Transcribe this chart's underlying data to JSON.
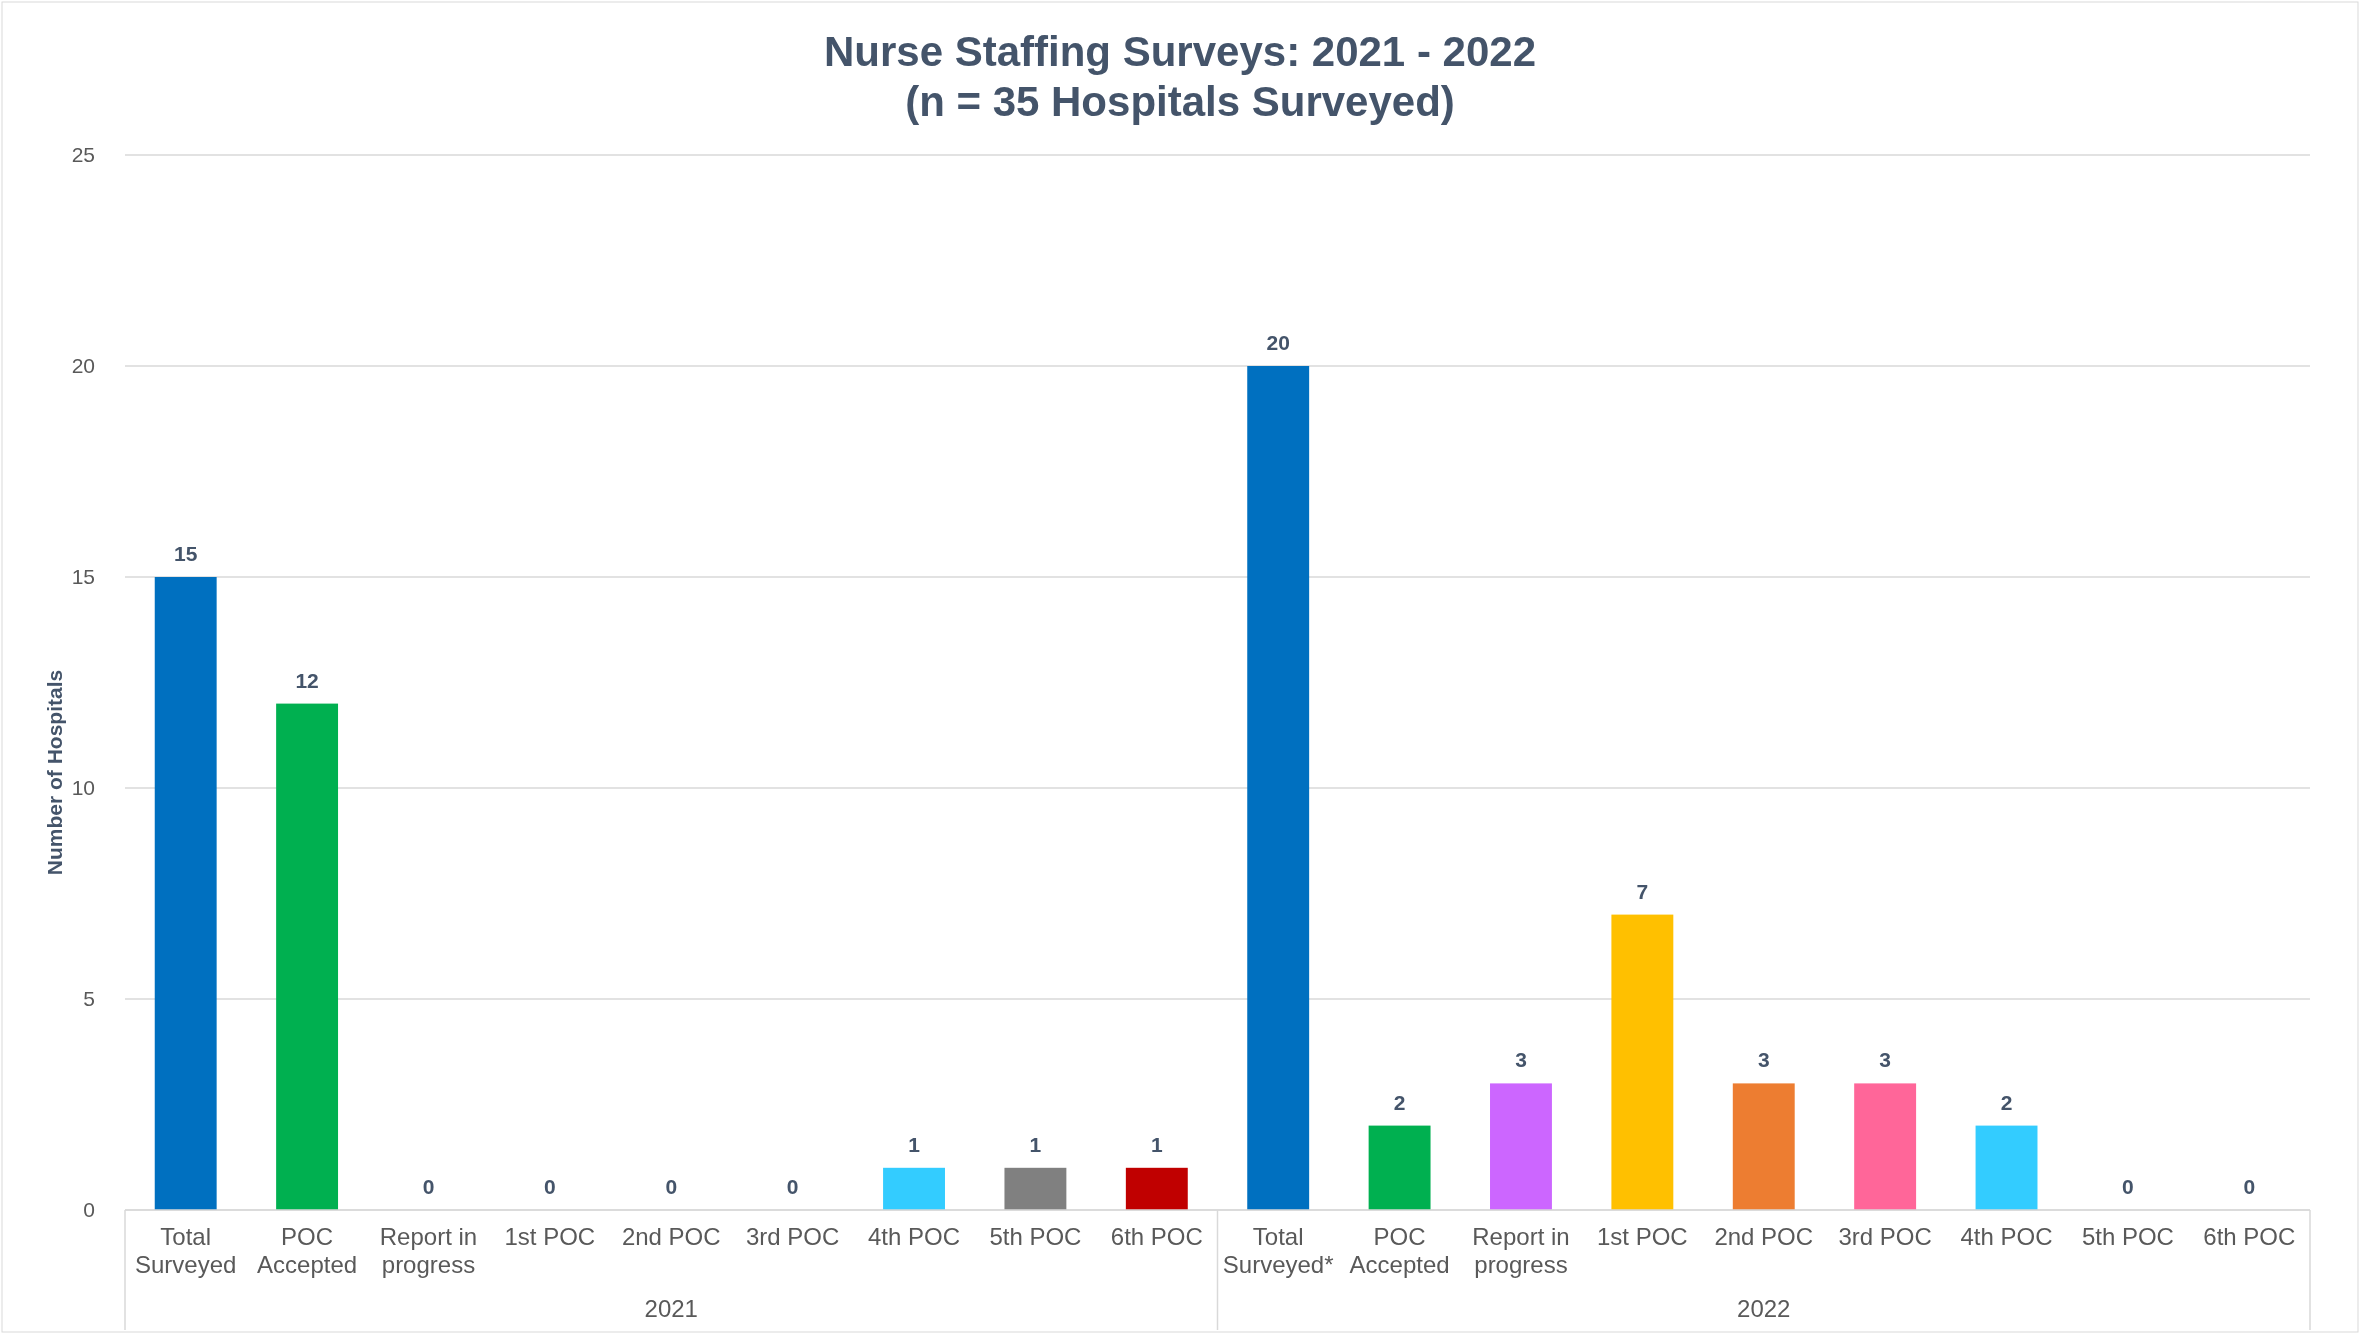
{
  "chart_data": {
    "type": "bar",
    "title": "Nurse Staffing Surveys: 2021 - 2022",
    "subtitle": "(n = 35 Hospitals Surveyed)",
    "ylabel": "Number of Hospitals",
    "categories": [
      "Total Surveyed",
      "POC Accepted",
      "Report in progress",
      "1st POC",
      "2nd POC",
      "3rd POC",
      "4th POC",
      "5th POC",
      "6th POC",
      "Total Surveyed*",
      "POC Accepted",
      "Report in progress",
      "1st POC",
      "2nd POC",
      "3rd POC",
      "4th POC",
      "5th POC",
      "6th POC"
    ],
    "values": [
      15,
      12,
      0,
      0,
      0,
      0,
      1,
      1,
      1,
      20,
      2,
      3,
      7,
      3,
      3,
      2,
      0,
      0
    ],
    "colors": [
      "#0070c0",
      "#00b050",
      "#808080",
      "#808080",
      "#808080",
      "#808080",
      "#33ccff",
      "#808080",
      "#c00000",
      "#0070c0",
      "#00b050",
      "#cc66ff",
      "#ffc000",
      "#ed7d31",
      "#ff6699",
      "#33ccff",
      "#808080",
      "#808080"
    ],
    "ylim": [
      0,
      25
    ],
    "yticks": [
      0,
      5,
      10,
      15,
      20,
      25
    ],
    "grid": "y",
    "data_labels": true,
    "annotations": [
      "2021",
      "2022"
    ]
  }
}
